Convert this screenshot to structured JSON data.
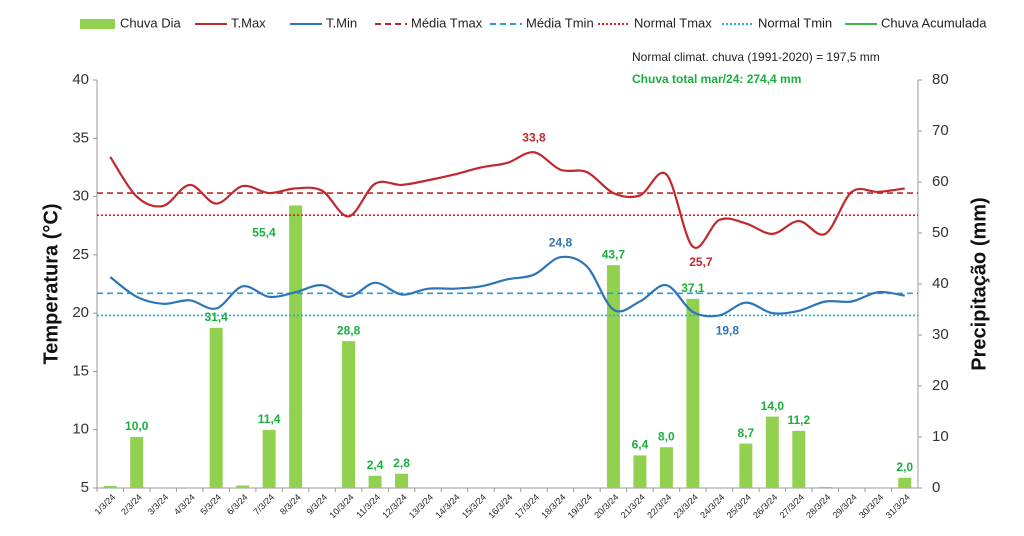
{
  "chart_data": {
    "type": "combo",
    "ylabel": "Temperatura (°C)",
    "y2label": "Precipitação (mm)",
    "annotations": [
      "Normal climat. chuva (1991-2020) = 197,5 mm",
      "Chuva total mar/24: 274,4 mm"
    ],
    "categories": [
      "1/3/24",
      "2/3/24",
      "3/3/24",
      "4/3/24",
      "5/3/24",
      "6/3/24",
      "7/3/24",
      "8/3/24",
      "9/3/24",
      "10/3/24",
      "11/3/24",
      "12/3/24",
      "13/3/24",
      "14/3/24",
      "15/3/24",
      "16/3/24",
      "17/3/24",
      "18/3/24",
      "19/3/24",
      "20/3/24",
      "21/3/24",
      "22/3/24",
      "23/3/24",
      "24/3/24",
      "25/3/24",
      "26/3/24",
      "27/3/24",
      "28/3/24",
      "29/3/24",
      "30/3/24",
      "31/3/24"
    ],
    "ylim": [
      5,
      40
    ],
    "yticks": [
      5,
      10,
      15,
      20,
      25,
      30,
      35,
      40
    ],
    "y2lim": [
      0,
      80
    ],
    "y2ticks": [
      0,
      10,
      20,
      30,
      40,
      50,
      60,
      70,
      80
    ],
    "series": [
      {
        "name": "Chuva Dia",
        "type": "bar",
        "axis": "y2",
        "color": "#92d050",
        "values": [
          0.4,
          10.0,
          0,
          0,
          31.4,
          0.5,
          11.4,
          55.4,
          0,
          28.8,
          2.4,
          2.8,
          0,
          0,
          0,
          0,
          0,
          0,
          0,
          43.7,
          6.4,
          8.0,
          37.1,
          0,
          8.7,
          14.0,
          11.2,
          0.2,
          0,
          0,
          2.0
        ],
        "value_labels": [
          null,
          "10,0",
          null,
          null,
          "31,4",
          null,
          "11,4",
          "55,4",
          null,
          "28,8",
          "2,4",
          "2,8",
          null,
          null,
          null,
          null,
          null,
          null,
          null,
          "43,7",
          "6,4",
          "8,0",
          "37,1",
          null,
          "8,7",
          "14,0",
          "11,2",
          null,
          null,
          null,
          "2,0"
        ]
      },
      {
        "name": "T.Max",
        "type": "line",
        "color": "#c0282d",
        "values": [
          33.4,
          30.0,
          29.2,
          31.0,
          29.4,
          30.9,
          30.3,
          30.7,
          30.5,
          28.3,
          31.1,
          31.0,
          31.4,
          31.9,
          32.5,
          32.9,
          33.8,
          32.3,
          32.1,
          30.3,
          30.1,
          31.9,
          25.7,
          28.0,
          27.7,
          26.8,
          27.9,
          26.8,
          30.4,
          30.4,
          30.7
        ],
        "value_labels": [
          null,
          null,
          null,
          null,
          null,
          null,
          null,
          null,
          null,
          null,
          null,
          null,
          null,
          null,
          null,
          null,
          "33,8",
          null,
          null,
          null,
          null,
          null,
          "25,7",
          null,
          null,
          null,
          null,
          null,
          null,
          null,
          null
        ]
      },
      {
        "name": "T.Min",
        "type": "line",
        "color": "#2e75b6",
        "values": [
          23.1,
          21.4,
          20.8,
          21.1,
          20.4,
          22.3,
          21.4,
          21.8,
          22.4,
          21.4,
          22.6,
          21.6,
          22.1,
          22.1,
          22.3,
          22.9,
          23.3,
          24.8,
          24.0,
          20.3,
          21.0,
          22.4,
          20.1,
          19.8,
          20.9,
          20.0,
          20.2,
          21.0,
          21.0,
          21.8,
          21.5
        ],
        "value_labels": [
          null,
          null,
          null,
          null,
          null,
          null,
          null,
          null,
          null,
          null,
          null,
          null,
          null,
          null,
          null,
          null,
          null,
          "24,8",
          null,
          null,
          null,
          null,
          null,
          "19,8",
          null,
          null,
          null,
          null,
          null,
          null,
          null
        ]
      },
      {
        "name": "Média Tmax",
        "type": "hline",
        "color": "#c0282d",
        "dash": "dashed",
        "value": 30.3
      },
      {
        "name": "Média Tmin",
        "type": "hline",
        "color": "#2e9bd6",
        "dash": "dashed",
        "value": 21.7
      },
      {
        "name": "Normal Tmax",
        "type": "hline",
        "color": "#e02020",
        "dash": "dotted",
        "value": 28.4
      },
      {
        "name": "Normal Tmin",
        "type": "hline",
        "color": "#1fb0e0",
        "dash": "dotted",
        "value": 19.8
      },
      {
        "name": "Chuva Acumulada",
        "type": "line",
        "axis": "y2",
        "color": "#3cb44b"
      }
    ]
  }
}
